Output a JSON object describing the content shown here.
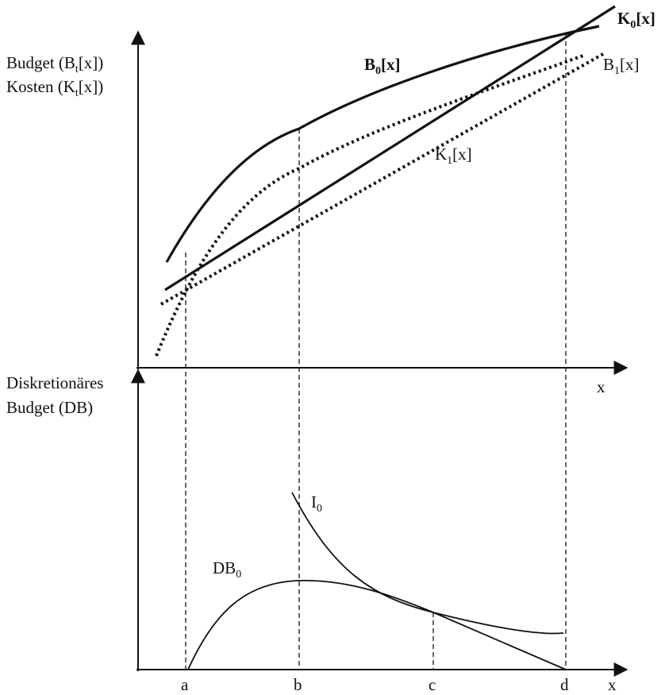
{
  "top_panel": {
    "y_axis_label_line1": {
      "text": "Budget (B",
      "sub": "t",
      "tail": "[x])"
    },
    "y_axis_label_line2": {
      "text": "Kosten (K",
      "sub": "t",
      "tail": "[x])"
    },
    "x_axis_label": "x",
    "curves": {
      "B0": {
        "base": "B",
        "sub": "0",
        "tail": "[x]"
      },
      "B1": {
        "base": "B",
        "sub": "1",
        "tail": "[x]"
      },
      "K0": {
        "base": "K",
        "sub": "0",
        "tail": "[x]"
      },
      "K1": {
        "base": "K",
        "sub": "1",
        "tail": "[x]"
      }
    }
  },
  "bottom_panel": {
    "y_axis_label_line1": "Diskretionäres",
    "y_axis_label_line2": "Budget (DB)",
    "x_axis_label": "x",
    "curves": {
      "DB0": {
        "base": "DB",
        "sub": "0"
      },
      "I0": {
        "base": "I",
        "sub": "0"
      }
    }
  },
  "x_ticks": [
    "a",
    "b",
    "c",
    "d"
  ],
  "colors": {
    "ink": "#111111"
  }
}
